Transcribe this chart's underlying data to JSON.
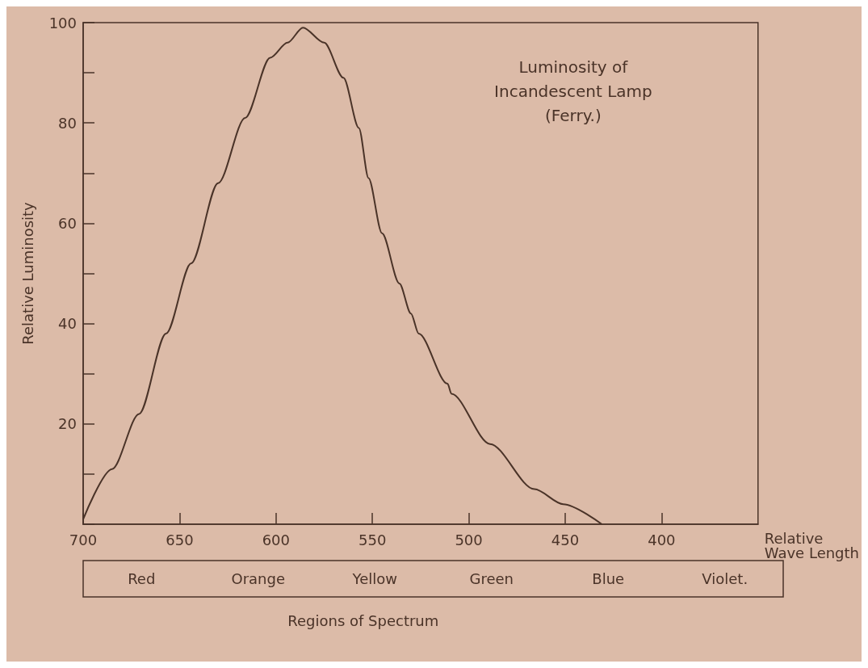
{
  "chart_data": {
    "type": "line",
    "xlabel": "Relative\nWave Length",
    "ylabel": "Relative Luminosity",
    "x": [
      700,
      685,
      671,
      657,
      644,
      630,
      616,
      603,
      594,
      586,
      575,
      565,
      557,
      552,
      545,
      536,
      530,
      526,
      511,
      509,
      489,
      466,
      451,
      431
    ],
    "series": [
      {
        "color": "#4a3328",
        "values": [
          1,
          11,
          22,
          38,
          52,
          68,
          81,
          93,
          96,
          99,
          96,
          89,
          79,
          69,
          58,
          48,
          42,
          38,
          28,
          26,
          16,
          7,
          4,
          0
        ]
      }
    ],
    "xlim": [
      700,
      350
    ],
    "xticks": [
      700,
      650,
      600,
      550,
      500,
      450,
      400
    ],
    "ylim": [
      0,
      100
    ],
    "yticks": [
      {
        "value": 0,
        "label": null
      },
      {
        "value": 10,
        "label": null
      },
      20,
      {
        "value": 30,
        "label": null
      },
      40,
      {
        "value": 50,
        "label": null
      },
      60,
      {
        "value": 70,
        "label": null
      },
      80,
      {
        "value": 90,
        "label": null
      },
      100
    ],
    "grid": false,
    "marker": "none",
    "line_style": "solid",
    "annotations": [
      "Luminosity of\nIncandescent Lamp\n(Ferry.)",
      "Regions of Spectrum",
      "Red",
      "Orange",
      "Yellow",
      "Green",
      "Blue",
      "Violet."
    ]
  }
}
